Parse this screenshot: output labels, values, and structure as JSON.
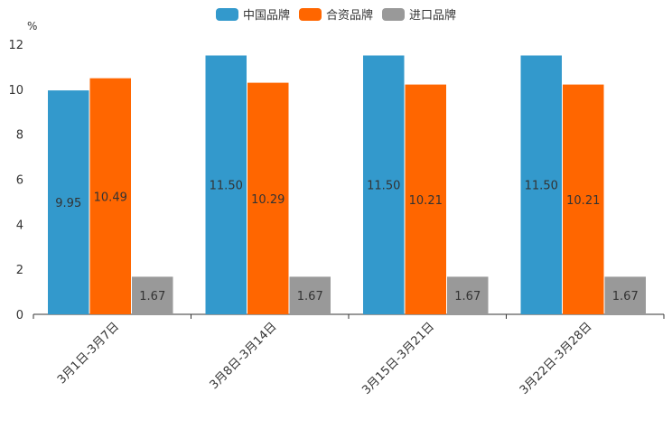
{
  "chart_data": {
    "type": "bar",
    "unit": "%",
    "categories": [
      "3月1日-3月7日",
      "3月8日-3月14日",
      "3月15日-3月21日",
      "3月22日-3月28日"
    ],
    "series": [
      {
        "name": "中国品牌",
        "color": "#3399cc",
        "values": [
          9.95,
          11.5,
          11.5,
          11.5
        ],
        "labels": [
          "9.95",
          "11.50",
          "11.50",
          "11.50"
        ]
      },
      {
        "name": "合资品牌",
        "color": "#ff6600",
        "values": [
          10.49,
          10.29,
          10.21,
          10.21
        ],
        "labels": [
          "10.49",
          "10.29",
          "10.21",
          "10.21"
        ]
      },
      {
        "name": "进口品牌",
        "color": "#999999",
        "values": [
          1.67,
          1.67,
          1.67,
          1.67
        ],
        "labels": [
          "1.67",
          "1.67",
          "1.67",
          "1.67"
        ]
      }
    ],
    "ylim": [
      0,
      12
    ],
    "yticks": [
      "0",
      "2",
      "4",
      "6",
      "8",
      "10",
      "12"
    ],
    "legend_position": "top-center"
  }
}
